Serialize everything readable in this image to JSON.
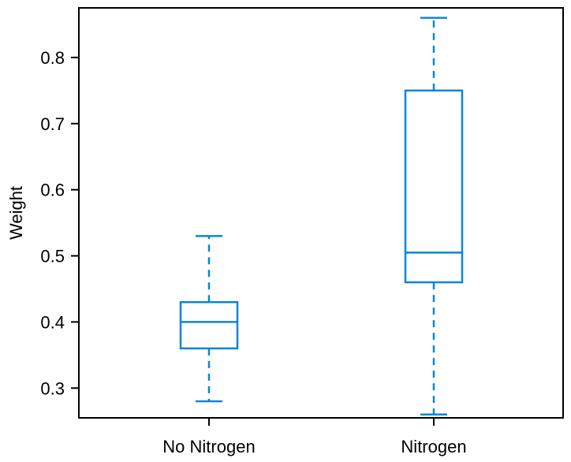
{
  "chart_data": {
    "type": "boxplot",
    "title": "",
    "xlabel": "",
    "ylabel": "Weight",
    "ylim": [
      0.255,
      0.875
    ],
    "yticks": [
      "0.3",
      "0.4",
      "0.5",
      "0.6",
      "0.7",
      "0.8"
    ],
    "grid": false,
    "legend": "none",
    "color": "#0a86d8",
    "categories": [
      "No Nitrogen",
      "Nitrogen"
    ],
    "boxes": [
      {
        "category": "No Nitrogen",
        "min": 0.28,
        "q1": 0.36,
        "median": 0.4,
        "q3": 0.43,
        "max": 0.53
      },
      {
        "category": "Nitrogen",
        "min": 0.26,
        "q1": 0.46,
        "median": 0.505,
        "q3": 0.75,
        "max": 0.86
      }
    ]
  }
}
